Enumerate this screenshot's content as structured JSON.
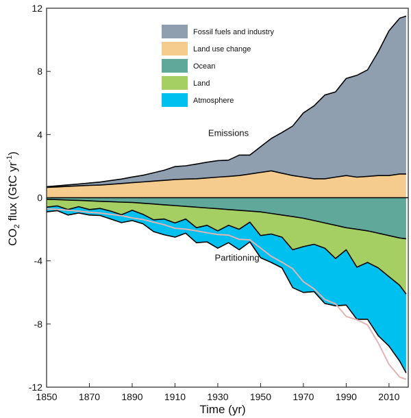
{
  "chart_data": {
    "type": "area",
    "xlabel": "Time (yr)",
    "ylabel_main": "CO",
    "ylabel_sub": "2",
    "ylabel_rest": " flux (GtC yr",
    "ylabel_sup": "-1",
    "ylabel_end": ")",
    "xlim": [
      1850,
      2019
    ],
    "ylim": [
      -12,
      12
    ],
    "x_ticks": [
      1850,
      1870,
      1890,
      1910,
      1930,
      1950,
      1970,
      1990,
      2010
    ],
    "y_ticks": [
      -12,
      -8,
      -4,
      0,
      4,
      8,
      12
    ],
    "legend_position": "top-center",
    "annotations": [
      {
        "text": "Emissions",
        "x": 1935,
        "y": 3.9
      },
      {
        "text": "Partitioning",
        "x": 1939,
        "y": -4.0
      }
    ],
    "x": [
      1850,
      1855,
      1860,
      1865,
      1870,
      1875,
      1880,
      1885,
      1890,
      1895,
      1900,
      1905,
      1910,
      1915,
      1920,
      1925,
      1930,
      1935,
      1940,
      1945,
      1950,
      1955,
      1960,
      1965,
      1970,
      1975,
      1980,
      1985,
      1990,
      1995,
      2000,
      2005,
      2010,
      2015,
      2018
    ],
    "series": [
      {
        "name": "Fossil fuels and industry",
        "color": "#909fb0",
        "values": [
          0.05,
          0.07,
          0.09,
          0.12,
          0.15,
          0.19,
          0.24,
          0.28,
          0.36,
          0.42,
          0.53,
          0.64,
          0.82,
          0.84,
          0.93,
          1.0,
          1.05,
          1.03,
          1.3,
          1.2,
          1.63,
          2.05,
          2.58,
          3.14,
          4.07,
          4.62,
          5.3,
          5.4,
          6.15,
          6.45,
          6.75,
          7.85,
          9.17,
          9.87,
          10.0
        ]
      },
      {
        "name": "Land use change",
        "color": "#f5cc8e",
        "values": [
          0.65,
          0.68,
          0.72,
          0.75,
          0.78,
          0.8,
          0.85,
          0.9,
          0.95,
          1.0,
          1.05,
          1.1,
          1.15,
          1.18,
          1.2,
          1.25,
          1.3,
          1.35,
          1.4,
          1.5,
          1.6,
          1.7,
          1.55,
          1.4,
          1.3,
          1.2,
          1.2,
          1.3,
          1.4,
          1.3,
          1.35,
          1.4,
          1.4,
          1.5,
          1.5
        ]
      },
      {
        "name": "Ocean",
        "color": "#5fa89a",
        "values": [
          -0.1,
          -0.12,
          -0.15,
          -0.17,
          -0.2,
          -0.23,
          -0.25,
          -0.28,
          -0.3,
          -0.35,
          -0.4,
          -0.45,
          -0.5,
          -0.55,
          -0.6,
          -0.65,
          -0.7,
          -0.75,
          -0.8,
          -0.85,
          -0.9,
          -1.0,
          -1.1,
          -1.2,
          -1.3,
          -1.45,
          -1.6,
          -1.75,
          -1.9,
          -2.0,
          -2.1,
          -2.25,
          -2.4,
          -2.55,
          -2.6
        ]
      },
      {
        "name": "Land",
        "color": "#a5cf63",
        "values": [
          -0.5,
          -0.4,
          -0.6,
          -0.4,
          -0.55,
          -0.45,
          -0.6,
          -0.8,
          -0.5,
          -0.7,
          -1.0,
          -0.9,
          -1.1,
          -0.8,
          -1.3,
          -1.1,
          -1.4,
          -1.0,
          -1.2,
          -0.7,
          -1.5,
          -1.3,
          -1.4,
          -2.1,
          -1.8,
          -1.5,
          -1.6,
          -2.1,
          -1.4,
          -2.4,
          -2.0,
          -2.2,
          -2.6,
          -3.0,
          -3.5
        ]
      },
      {
        "name": "Atmosphere",
        "color": "#00c0f0",
        "values": [
          -0.3,
          -0.3,
          -0.35,
          -0.4,
          -0.35,
          -0.45,
          -0.5,
          -0.5,
          -0.65,
          -0.6,
          -0.75,
          -1.0,
          -0.9,
          -0.9,
          -0.95,
          -1.05,
          -1.1,
          -1.1,
          -1.3,
          -1.25,
          -1.4,
          -1.8,
          -1.95,
          -2.4,
          -2.9,
          -3.0,
          -3.5,
          -3.0,
          -3.5,
          -3.3,
          -3.6,
          -4.3,
          -4.4,
          -4.8,
          -5.0
        ]
      }
    ],
    "total_sink_line": {
      "color": "#e2b4b4",
      "values": [
        -0.7,
        -0.74,
        -0.79,
        -0.85,
        -0.92,
        -0.97,
        -1.06,
        -1.14,
        -1.28,
        -1.38,
        -1.55,
        -1.71,
        -1.94,
        -1.99,
        -2.1,
        -2.22,
        -2.33,
        -2.37,
        -2.64,
        -2.67,
        -3.19,
        -3.71,
        -4.09,
        -4.5,
        -5.32,
        -5.77,
        -6.45,
        -6.72,
        -7.52,
        -7.73,
        -8.06,
        -9.21,
        -10.56,
        -11.36,
        -11.5
      ]
    }
  }
}
